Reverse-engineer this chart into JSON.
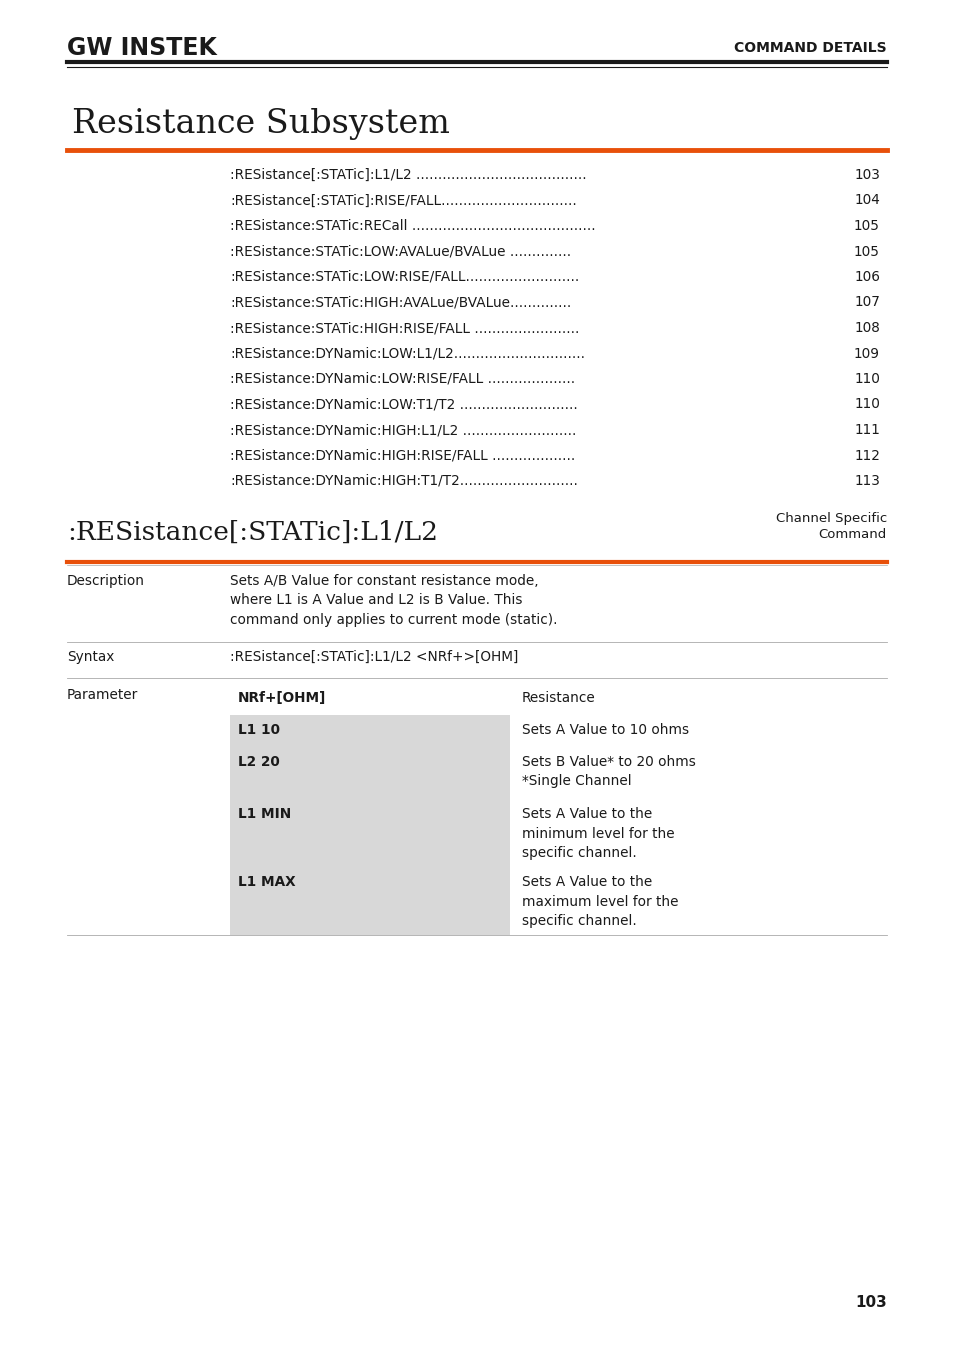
{
  "bg_color": "#ffffff",
  "logo_text": "GW INSTEK",
  "header_right": "COMMAND DETAILS",
  "title": "Resistance Subsystem",
  "orange_color": "#E8500A",
  "toc_entries": [
    [
      ":RESistance[:STATic]:L1/L2 .......................................",
      "103"
    ],
    [
      ":RESistance[:STATic]:RISE/FALL...............................",
      "104"
    ],
    [
      ":RESistance:STATic:RECall ..........................................",
      "105"
    ],
    [
      ":RESistance:STATic:LOW:AVALue/BVALue ..............",
      "105"
    ],
    [
      ":RESistance:STATic:LOW:RISE/FALL..........................",
      "106"
    ],
    [
      ":RESistance:STATic:HIGH:AVALue/BVALue..............",
      "107"
    ],
    [
      ":RESistance:STATic:HIGH:RISE/FALL ........................",
      "108"
    ],
    [
      ":RESistance:DYNamic:LOW:L1/L2..............................",
      "109"
    ],
    [
      ":RESistance:DYNamic:LOW:RISE/FALL ....................",
      "110"
    ],
    [
      ":RESistance:DYNamic:LOW:T1/T2 ...........................",
      "110"
    ],
    [
      ":RESistance:DYNamic:HIGH:L1/L2 ..........................",
      "111"
    ],
    [
      ":RESistance:DYNamic:HIGH:RISE/FALL ...................",
      "112"
    ],
    [
      ":RESistance:DYNamic:HIGH:T1/T2...........................",
      "113"
    ]
  ],
  "section_title": ":RESistance[:STATic]:L1/L2",
  "section_tag_line1": "Channel Specific",
  "section_tag_line2": "Command",
  "description_label": "Description",
  "description_text": "Sets A/B Value for constant resistance mode,\nwhere L1 is A Value and L2 is B Value. This\ncommand only applies to current mode (static).",
  "syntax_label": "Syntax",
  "syntax_text": ":RESistance[:STATic]:L1/L2 <NRf+>[OHM]",
  "parameter_label": "Parameter",
  "param_rows": [
    {
      "col1": "NRf+[OHM]",
      "col2": "Resistance",
      "shaded": false,
      "lines": 1
    },
    {
      "col1": "L1 10",
      "col2": "Sets A Value to 10 ohms",
      "shaded": true,
      "lines": 1
    },
    {
      "col1": "L2 20",
      "col2": "Sets B Value* to 20 ohms\n*Single Channel",
      "shaded": true,
      "lines": 2
    },
    {
      "col1": "L1 MIN",
      "col2": "Sets A Value to the\nminimum level for the\nspecific channel.",
      "shaded": true,
      "lines": 3
    },
    {
      "col1": "L1 MAX",
      "col2": "Sets A Value to the\nmaximum level for the\nspecific channel.",
      "shaded": true,
      "lines": 3
    }
  ],
  "page_number": "103",
  "shade_color": "#d8d8d8",
  "line_color": "#aaaaaa",
  "text_color": "#1a1a1a"
}
